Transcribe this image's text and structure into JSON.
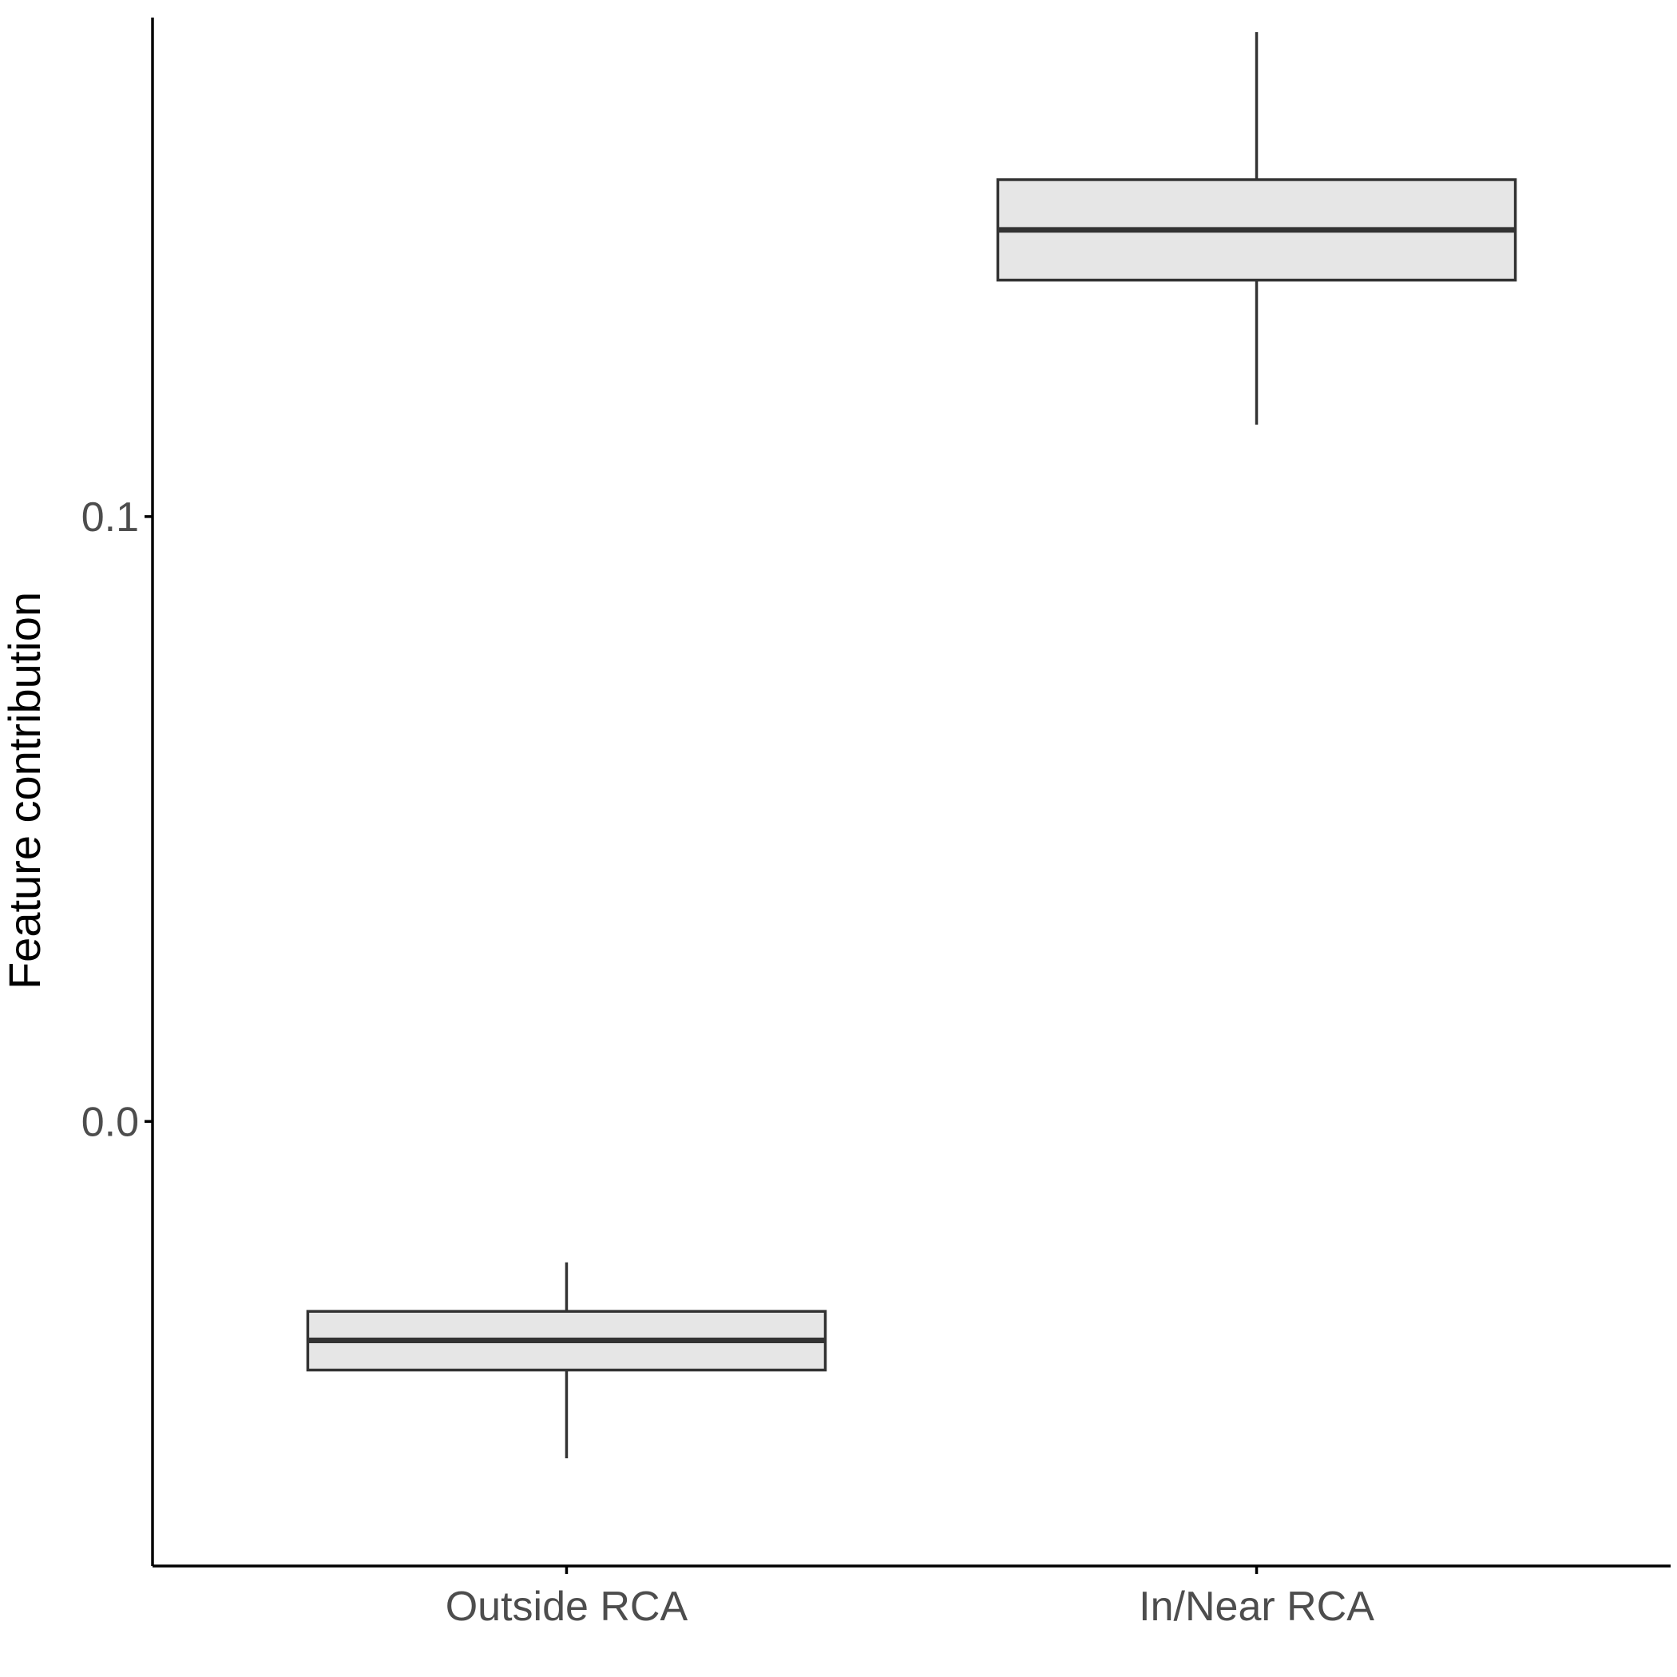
{
  "chart_data": {
    "type": "boxplot",
    "title": "",
    "xlabel": "",
    "ylabel": "Feature contribution",
    "y_ticks": [
      {
        "value": 0.0,
        "label": "0.0"
      },
      {
        "value": 0.1,
        "label": "0.1"
      }
    ],
    "ylim": [
      -0.0735,
      0.1825
    ],
    "grid": false,
    "legend": "none",
    "categories": [
      "Outside RCA",
      "In/Near RCA"
    ],
    "boxes": [
      {
        "category": "Outside RCA",
        "whisker_low": -0.0557,
        "q1": -0.0411,
        "median": -0.0362,
        "q3": -0.0314,
        "whisker_high": -0.0233
      },
      {
        "category": "In/Near RCA",
        "whisker_low": 0.1152,
        "q1": 0.1391,
        "median": 0.1474,
        "q3": 0.1557,
        "whisker_high": 0.1801
      }
    ],
    "colors": {
      "box_fill": "#e6e6e6",
      "box_stroke": "#333333",
      "axis": "#000000",
      "tick_text": "#4d4d4d"
    }
  }
}
